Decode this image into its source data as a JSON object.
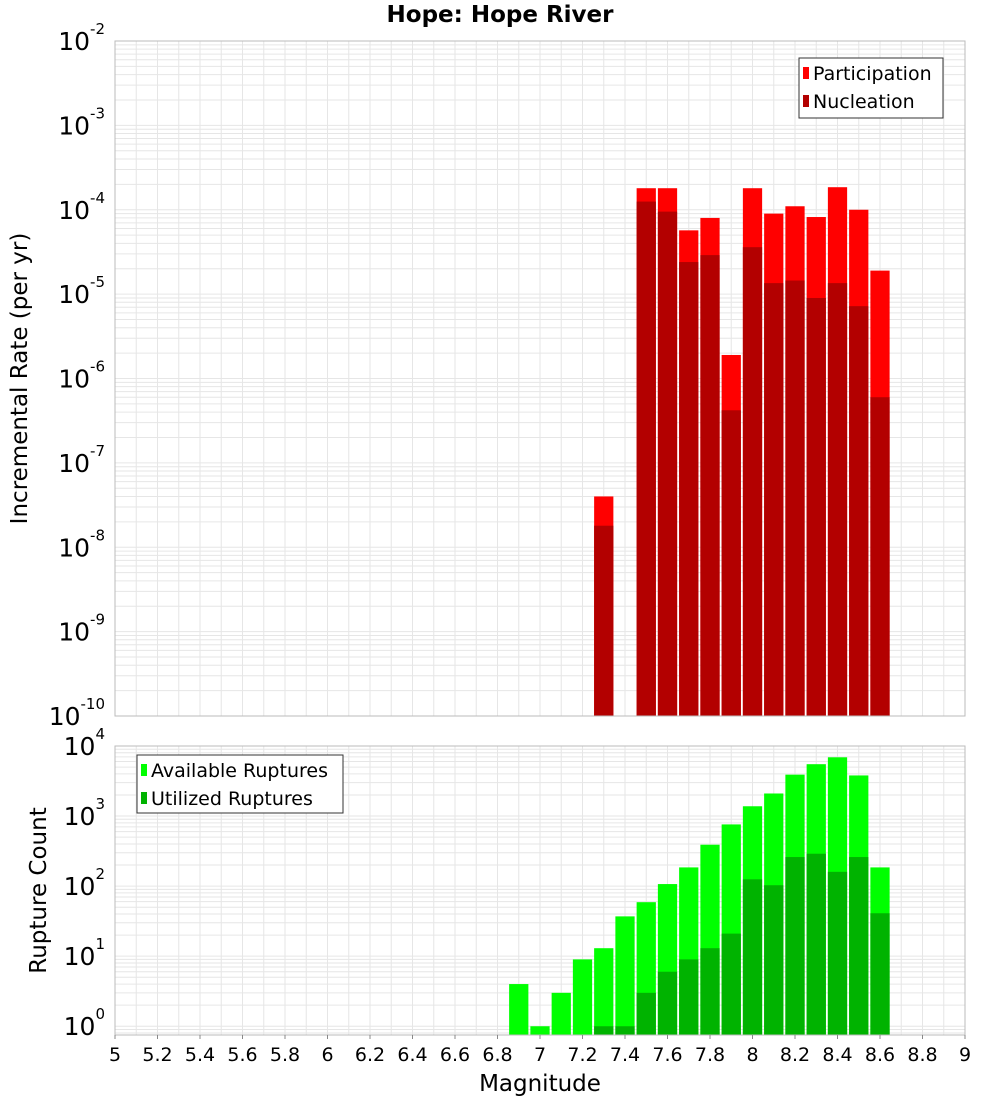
{
  "title": "Hope: Hope River",
  "colors": {
    "participation": "#ff0000",
    "nucleation": "#b30000",
    "available": "#00ff00",
    "utilized": "#00b300",
    "grid": "#e6e6e6",
    "frame": "#bbbbbb"
  },
  "chart_data": [
    {
      "type": "bar",
      "name": "rate-panel",
      "ylabel": "Incremental Rate (per yr)",
      "yscale": "log",
      "ylim_exponents": [
        -10,
        -2
      ],
      "grid": true,
      "legend_position": "top-right",
      "y_tick_exponents": [
        "-2",
        "-3",
        "-4",
        "-5",
        "-6",
        "-7",
        "-8",
        "-9",
        "-10"
      ],
      "x": [
        7.3,
        7.5,
        7.6,
        7.7,
        7.8,
        7.9,
        8.0,
        8.1,
        8.2,
        8.3,
        8.4,
        8.5,
        8.6
      ],
      "series": [
        {
          "name": "Participation",
          "color": "#ff0000",
          "values": [
            4e-08,
            0.00018,
            0.00018,
            5.7e-05,
            8e-05,
            1.9e-06,
            0.00018,
            9e-05,
            0.00011,
            8.2e-05,
            0.000185,
            0.0001,
            1.9e-05
          ]
        },
        {
          "name": "Nucleation",
          "color": "#b30000",
          "values": [
            1.8e-08,
            0.000125,
            9.5e-05,
            2.4e-05,
            2.9e-05,
            4.2e-07,
            3.6e-05,
            1.35e-05,
            1.45e-05,
            9e-06,
            1.35e-05,
            7.2e-06,
            6e-07
          ]
        }
      ]
    },
    {
      "type": "bar",
      "name": "count-panel",
      "ylabel": "Rupture Count",
      "xlabel": "Magnitude",
      "yscale": "log",
      "ylim": [
        0.75,
        10000
      ],
      "grid": true,
      "legend_position": "top-left",
      "y_tick_exponents": [
        "0",
        "1",
        "2",
        "3",
        "4"
      ],
      "x_ticks": [
        "5",
        "5.2",
        "5.4",
        "5.6",
        "5.8",
        "6",
        "6.2",
        "6.4",
        "6.6",
        "6.8",
        "7",
        "7.2",
        "7.4",
        "7.6",
        "7.8",
        "8",
        "8.2",
        "8.4",
        "8.6",
        "8.8",
        "9"
      ],
      "xlim": [
        5,
        9
      ],
      "x": [
        6.9,
        7.0,
        7.1,
        7.2,
        7.3,
        7.4,
        7.5,
        7.6,
        7.7,
        7.8,
        7.9,
        8.0,
        8.1,
        8.2,
        8.3,
        8.4,
        8.5,
        8.6
      ],
      "series": [
        {
          "name": "Available Ruptures",
          "color": "#00ff00",
          "values": [
            4,
            1,
            3,
            9,
            13,
            37,
            59,
            107,
            185,
            390,
            760,
            1380,
            2100,
            3900,
            5500,
            6900,
            3800,
            185
          ]
        },
        {
          "name": "Utilized Ruptures",
          "color": "#00b300",
          "values": [
            0,
            0,
            0,
            0,
            1,
            1,
            3,
            6,
            9,
            13,
            21,
            125,
            103,
            260,
            290,
            160,
            260,
            41
          ]
        }
      ]
    }
  ]
}
